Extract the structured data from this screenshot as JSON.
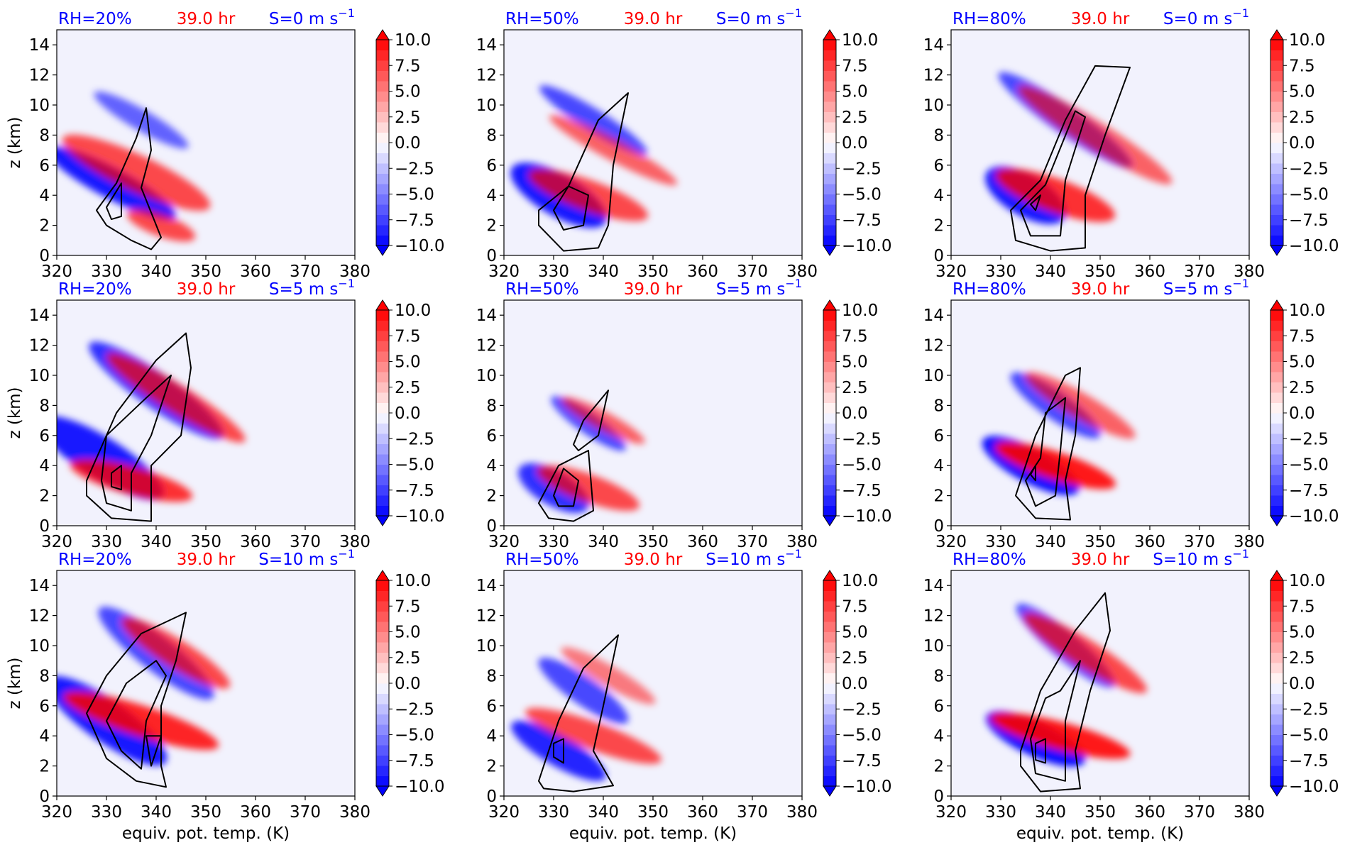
{
  "figure": {
    "time_label": "39.0 hr",
    "time_color": "#ff0000",
    "case_color": "#0000ff"
  },
  "chart_data": [
    {
      "type": "contour",
      "rh_label": "RH=20%",
      "shear_label": "S=0 m s",
      "shear_exp": "−1",
      "time": "39.0 hr",
      "ylabel": "z (km)",
      "xlabel": "",
      "xlim": [
        320,
        380
      ],
      "ylim": [
        0,
        15
      ]
    },
    {
      "type": "contour",
      "rh_label": "RH=50%",
      "shear_label": "S=0 m s",
      "shear_exp": "−1",
      "time": "39.0 hr",
      "ylabel": "",
      "xlabel": "",
      "xlim": [
        320,
        380
      ],
      "ylim": [
        0,
        15
      ]
    },
    {
      "type": "contour",
      "rh_label": "RH=80%",
      "shear_label": "S=0 m s",
      "shear_exp": "−1",
      "time": "39.0 hr",
      "ylabel": "",
      "xlabel": "",
      "xlim": [
        320,
        380
      ],
      "ylim": [
        0,
        15
      ]
    },
    {
      "type": "contour",
      "rh_label": "RH=20%",
      "shear_label": "S=5 m s",
      "shear_exp": "−1",
      "time": "39.0 hr",
      "ylabel": "z (km)",
      "xlabel": "",
      "xlim": [
        320,
        380
      ],
      "ylim": [
        0,
        15
      ]
    },
    {
      "type": "contour",
      "rh_label": "RH=50%",
      "shear_label": "S=5 m s",
      "shear_exp": "−1",
      "time": "39.0 hr",
      "ylabel": "",
      "xlabel": "",
      "xlim": [
        320,
        380
      ],
      "ylim": [
        0,
        15
      ]
    },
    {
      "type": "contour",
      "rh_label": "RH=80%",
      "shear_label": "S=5 m s",
      "shear_exp": "−1",
      "time": "39.0 hr",
      "ylabel": "",
      "xlabel": "",
      "xlim": [
        320,
        380
      ],
      "ylim": [
        0,
        15
      ]
    },
    {
      "type": "contour",
      "rh_label": "RH=20%",
      "shear_label": "S=10 m s",
      "shear_exp": "−1",
      "time": "39.0 hr",
      "ylabel": "z (km)",
      "xlabel": "equiv. pot. temp. (K)",
      "xlim": [
        320,
        380
      ],
      "ylim": [
        0,
        15
      ]
    },
    {
      "type": "contour",
      "rh_label": "RH=50%",
      "shear_label": "S=10 m s",
      "shear_exp": "−1",
      "time": "39.0 hr",
      "ylabel": "",
      "xlabel": "equiv. pot. temp. (K)",
      "xlim": [
        320,
        380
      ],
      "ylim": [
        0,
        15
      ]
    },
    {
      "type": "contour",
      "rh_label": "RH=80%",
      "shear_label": "S=10 m s",
      "shear_exp": "−1",
      "time": "39.0 hr",
      "ylabel": "",
      "xlabel": "equiv. pot. temp. (K)",
      "xlim": [
        320,
        380
      ],
      "ylim": [
        0,
        15
      ]
    }
  ],
  "axes": {
    "x_ticks": [
      "320",
      "330",
      "340",
      "350",
      "360",
      "370",
      "380"
    ],
    "y_ticks": [
      "0",
      "2",
      "4",
      "6",
      "8",
      "10",
      "12",
      "14"
    ]
  },
  "colorbar": {
    "ticks": [
      "10.0",
      "7.5",
      "5.0",
      "2.5",
      "0.0",
      "−2.5",
      "−5.0",
      "−7.5",
      "−10.0"
    ],
    "range": [
      -10,
      10
    ],
    "extend": "both",
    "neg_color": "#0000ff",
    "pos_color": "#ff0000",
    "mid_color": "#ffffff",
    "background_color": "#f2f2fd"
  }
}
